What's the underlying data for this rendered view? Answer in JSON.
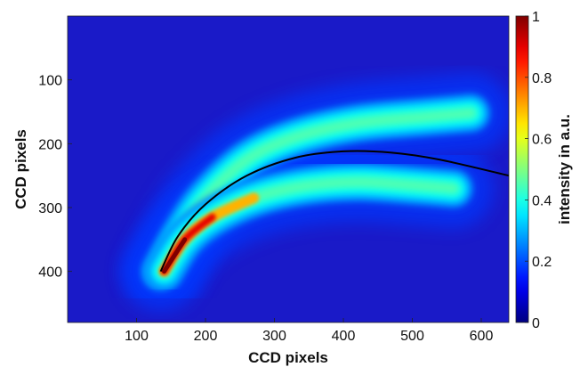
{
  "chart_data": {
    "type": "heatmap",
    "title": "",
    "xlabel": "CCD pixels",
    "ylabel": "CCD pixels",
    "xlim": [
      0,
      640
    ],
    "ylim": [
      480,
      0
    ],
    "y_axis_reversed": true,
    "x_ticks": [
      100,
      200,
      300,
      400,
      500,
      600
    ],
    "y_ticks": [
      100,
      200,
      300,
      400
    ],
    "grid": false,
    "colormap": "jet",
    "colorbar": {
      "label": "intensity in a.u.",
      "range": [
        0,
        1
      ],
      "ticks": [
        0,
        0.2,
        0.4,
        0.6,
        0.8,
        1
      ],
      "tick_labels": [
        "0",
        "0.2",
        "0.4",
        "0.6",
        "0.8",
        "1"
      ]
    },
    "features": [
      {
        "name": "upper arc",
        "peak_intensity": 0.45,
        "points": [
          [
            135,
            400
          ],
          [
            165,
            340
          ],
          [
            200,
            285
          ],
          [
            260,
            225
          ],
          [
            330,
            190
          ],
          [
            420,
            168
          ],
          [
            520,
            158
          ],
          [
            585,
            152
          ]
        ]
      },
      {
        "name": "lower arc",
        "peak_intensity": 1.0,
        "points": [
          [
            140,
            400
          ],
          [
            170,
            350
          ],
          [
            210,
            315
          ],
          [
            270,
            285
          ],
          [
            340,
            267
          ],
          [
            420,
            260
          ],
          [
            500,
            265
          ],
          [
            560,
            270
          ]
        ]
      }
    ],
    "overlay_curve": {
      "color": "#000000",
      "points": [
        [
          135,
          400
        ],
        [
          160,
          345
        ],
        [
          200,
          295
        ],
        [
          260,
          250
        ],
        [
          330,
          222
        ],
        [
          400,
          212
        ],
        [
          470,
          214
        ],
        [
          540,
          225
        ],
        [
          640,
          250
        ]
      ]
    }
  },
  "colors": {
    "background": "#1a1ac8",
    "overlay_line": "#000000"
  }
}
